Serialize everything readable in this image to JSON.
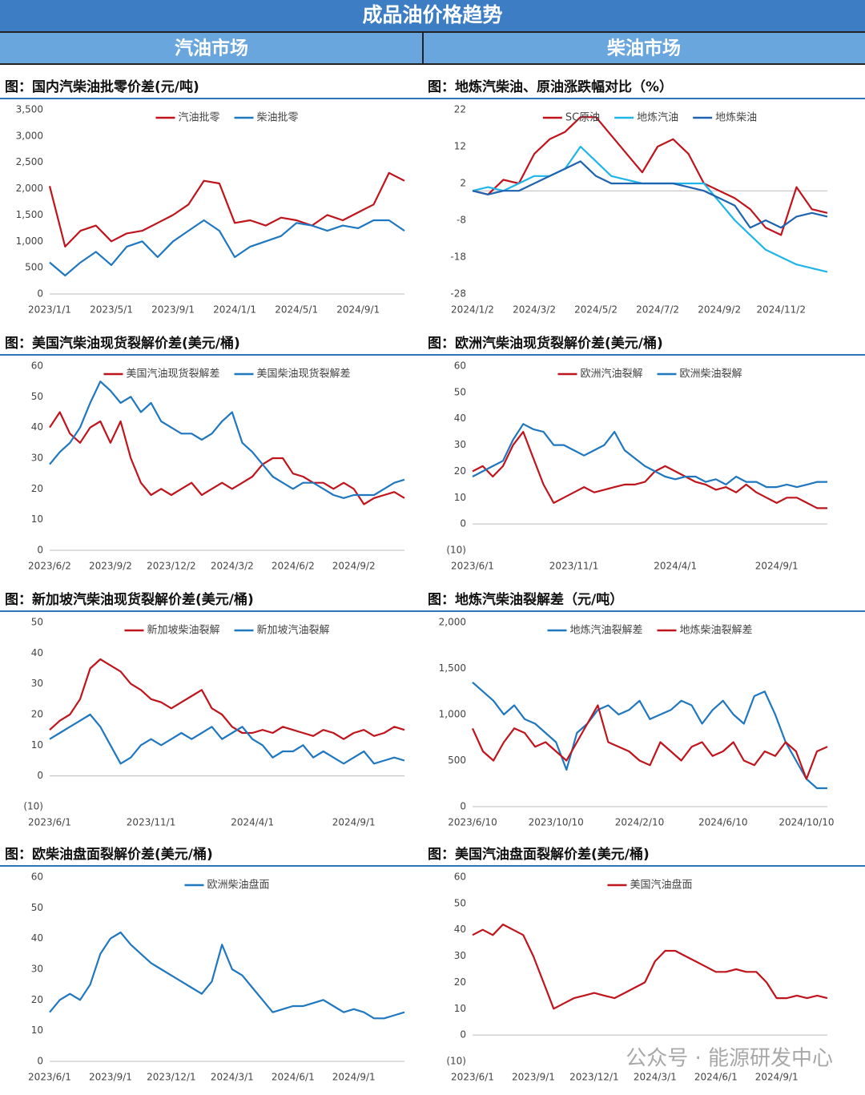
{
  "header": {
    "title": "成品油价格趋势",
    "sections": [
      "汽油市场",
      "柴油市场"
    ]
  },
  "watermark": "公众号 · 能源研发中心",
  "chart_data": [
    {
      "type": "line",
      "title": "图：国内汽柴油批零价差(元/吨)",
      "categories": [
        "2023/1/1",
        null,
        null,
        null,
        "2023/5/1",
        null,
        null,
        null,
        "2023/9/1",
        null,
        null,
        null,
        "2024/1/1",
        null,
        null,
        null,
        "2024/5/1",
        null,
        null,
        null,
        "2024/9/1",
        null,
        null,
        null
      ],
      "series": [
        {
          "name": "汽油批零",
          "color": "#c0141c",
          "values": [
            2050,
            900,
            1200,
            1300,
            1000,
            1150,
            1200,
            1350,
            1500,
            1700,
            2150,
            2100,
            1350,
            1400,
            1300,
            1450,
            1400,
            1300,
            1500,
            1400,
            1550,
            1700,
            2300,
            2150
          ]
        },
        {
          "name": "柴油批零",
          "color": "#1f77c0",
          "values": [
            600,
            350,
            600,
            800,
            550,
            900,
            1000,
            700,
            1000,
            1200,
            1400,
            1200,
            700,
            900,
            1000,
            1100,
            1350,
            1300,
            1200,
            1300,
            1250,
            1400,
            1400,
            1200
          ]
        }
      ],
      "ylim": [
        0,
        3500
      ],
      "yticks": [
        0,
        500,
        {
          "value": 1000,
          "label": "1,000"
        },
        {
          "value": 1500,
          "label": "1,500"
        },
        {
          "value": 2000,
          "label": "2,000"
        },
        {
          "value": 2500,
          "label": "2,500"
        },
        {
          "value": 3000,
          "label": "3,000"
        },
        {
          "value": 3500,
          "label": "3,500"
        }
      ],
      "grid": false
    },
    {
      "type": "line",
      "title": "图：地炼汽柴油、原油涨跌幅对比（%）",
      "categories": [
        "2024/1/2",
        null,
        null,
        null,
        "2024/3/2",
        null,
        null,
        null,
        "2024/5/2",
        null,
        null,
        null,
        "2024/7/2",
        null,
        null,
        null,
        "2024/9/2",
        null,
        null,
        null,
        "2024/11/2",
        null,
        null,
        null
      ],
      "series": [
        {
          "name": "SC原油",
          "color": "#c0141c",
          "values": [
            0,
            -1,
            3,
            2,
            10,
            14,
            16,
            20,
            20,
            15,
            10,
            5,
            12,
            14,
            10,
            2,
            0,
            -2,
            -5,
            -10,
            -12,
            1,
            -5,
            -6
          ]
        },
        {
          "name": "地炼汽油",
          "color": "#1fb5e8",
          "values": [
            0,
            1,
            0,
            2,
            4,
            4,
            6,
            12,
            8,
            4,
            3,
            2,
            2,
            2,
            2,
            2,
            -3,
            -8,
            -12,
            -16,
            -18,
            -20,
            -21,
            -22
          ]
        },
        {
          "name": "地炼柴油",
          "color": "#1f63b0",
          "values": [
            0,
            -1,
            0,
            0,
            2,
            4,
            6,
            8,
            4,
            2,
            2,
            2,
            2,
            2,
            1,
            0,
            -2,
            -4,
            -10,
            -8,
            -10,
            -7,
            -6,
            -7
          ]
        }
      ],
      "ylim": [
        -28,
        22
      ],
      "yticks": [
        -28,
        -18,
        -8,
        2,
        12,
        22
      ],
      "grid": false
    },
    {
      "type": "line",
      "title": "图：美国汽柴油现货裂解价差(美元/桶)",
      "categories": [
        "2023/6/2",
        null,
        null,
        null,
        null,
        null,
        "2023/9/2",
        null,
        null,
        null,
        null,
        null,
        "2023/12/2",
        null,
        null,
        null,
        null,
        null,
        "2024/3/2",
        null,
        null,
        null,
        null,
        null,
        "2024/6/2",
        null,
        null,
        null,
        null,
        null,
        "2024/9/2",
        null,
        null,
        null,
        null,
        null
      ],
      "series": [
        {
          "name": "美国汽油现货裂解差",
          "color": "#c0141c",
          "values": [
            40,
            45,
            38,
            35,
            40,
            42,
            35,
            42,
            30,
            22,
            18,
            20,
            18,
            20,
            22,
            18,
            20,
            22,
            20,
            22,
            24,
            28,
            30,
            30,
            25,
            24,
            22,
            22,
            20,
            22,
            20,
            15,
            17,
            18,
            19,
            17
          ]
        },
        {
          "name": "美国柴油现货裂解差",
          "color": "#1f77c0",
          "values": [
            28,
            32,
            35,
            40,
            48,
            55,
            52,
            48,
            50,
            45,
            48,
            42,
            40,
            38,
            38,
            36,
            38,
            42,
            45,
            35,
            32,
            28,
            24,
            22,
            20,
            22,
            22,
            20,
            18,
            17,
            18,
            18,
            18,
            20,
            22,
            23
          ]
        }
      ],
      "ylim": [
        0,
        60
      ],
      "yticks": [
        0,
        10,
        20,
        30,
        40,
        50,
        60
      ],
      "grid": false
    },
    {
      "type": "line",
      "title": "图：欧洲汽柴油现货裂解价差(美元/桶)",
      "categories": [
        "2023/6/1",
        null,
        null,
        null,
        null,
        null,
        null,
        null,
        null,
        null,
        "2023/11/1",
        null,
        null,
        null,
        null,
        null,
        null,
        null,
        null,
        null,
        "2024/4/1",
        null,
        null,
        null,
        null,
        null,
        null,
        null,
        null,
        null,
        "2024/9/1",
        null,
        null,
        null,
        null,
        null
      ],
      "series": [
        {
          "name": "欧洲汽油裂解",
          "color": "#c0141c",
          "values": [
            20,
            22,
            18,
            22,
            30,
            35,
            25,
            15,
            8,
            10,
            12,
            14,
            12,
            13,
            14,
            15,
            15,
            16,
            20,
            22,
            20,
            18,
            16,
            15,
            13,
            14,
            12,
            15,
            12,
            10,
            8,
            10,
            10,
            8,
            6,
            6
          ]
        },
        {
          "name": "欧洲柴油裂解",
          "color": "#1f77c0",
          "values": [
            18,
            20,
            22,
            24,
            32,
            38,
            36,
            35,
            30,
            30,
            28,
            26,
            28,
            30,
            35,
            28,
            25,
            22,
            20,
            18,
            17,
            18,
            18,
            16,
            17,
            15,
            18,
            16,
            16,
            14,
            14,
            15,
            14,
            15,
            16,
            16
          ]
        }
      ],
      "ylim": [
        -10,
        60
      ],
      "yticks": [
        {
          "value": -10,
          "label": "(10)"
        },
        0,
        10,
        20,
        30,
        40,
        50,
        60
      ],
      "grid": false
    },
    {
      "type": "line",
      "title": "图：新加坡汽柴油现货裂解价差(美元/桶)",
      "categories": [
        "2023/6/1",
        null,
        null,
        null,
        null,
        null,
        null,
        null,
        null,
        null,
        "2023/11/1",
        null,
        null,
        null,
        null,
        null,
        null,
        null,
        null,
        null,
        "2024/4/1",
        null,
        null,
        null,
        null,
        null,
        null,
        null,
        null,
        null,
        "2024/9/1",
        null,
        null,
        null,
        null,
        null
      ],
      "series": [
        {
          "name": "新加坡柴油裂解",
          "color": "#c0141c",
          "values": [
            15,
            18,
            20,
            25,
            35,
            38,
            36,
            34,
            30,
            28,
            25,
            24,
            22,
            24,
            26,
            28,
            22,
            20,
            16,
            14,
            14,
            15,
            14,
            16,
            15,
            14,
            13,
            15,
            14,
            12,
            14,
            15,
            13,
            14,
            16,
            15
          ]
        },
        {
          "name": "新加坡汽油裂解",
          "color": "#1f77c0",
          "values": [
            12,
            14,
            16,
            18,
            20,
            16,
            10,
            4,
            6,
            10,
            12,
            10,
            12,
            14,
            12,
            14,
            16,
            12,
            14,
            16,
            12,
            10,
            6,
            8,
            8,
            10,
            6,
            8,
            6,
            4,
            6,
            8,
            4,
            5,
            6,
            5
          ]
        }
      ],
      "ylim": [
        -10,
        50
      ],
      "yticks": [
        {
          "value": -10,
          "label": "(10)"
        },
        0,
        10,
        20,
        30,
        40,
        50
      ],
      "grid": false
    },
    {
      "type": "line",
      "title": "图：地炼汽柴油裂解差（元/吨）",
      "categories": [
        "2023/6/10",
        null,
        null,
        null,
        null,
        null,
        null,
        null,
        "2023/10/10",
        null,
        null,
        null,
        null,
        null,
        null,
        null,
        "2024/2/10",
        null,
        null,
        null,
        null,
        null,
        null,
        null,
        "2024/6/10",
        null,
        null,
        null,
        null,
        null,
        null,
        null,
        "2024/10/10",
        null,
        null
      ],
      "series": [
        {
          "name": "地炼汽油裂解差",
          "color": "#1f77c0",
          "values": [
            1350,
            1250,
            1150,
            1000,
            1100,
            950,
            900,
            800,
            700,
            400,
            800,
            900,
            1050,
            1100,
            1000,
            1050,
            1150,
            950,
            1000,
            1050,
            1150,
            1100,
            900,
            1050,
            1150,
            1000,
            900,
            1200,
            1250,
            1000,
            700,
            500,
            300,
            200,
            200
          ]
        },
        {
          "name": "地炼柴油裂解差",
          "color": "#c0141c",
          "values": [
            850,
            600,
            500,
            700,
            850,
            800,
            650,
            700,
            600,
            500,
            700,
            900,
            1100,
            700,
            650,
            600,
            500,
            450,
            700,
            600,
            500,
            650,
            700,
            550,
            600,
            700,
            500,
            450,
            600,
            550,
            700,
            600,
            300,
            600,
            650
          ]
        }
      ],
      "ylim": [
        0,
        2000
      ],
      "yticks": [
        0,
        500,
        {
          "value": 1000,
          "label": "1,000"
        },
        {
          "value": 1500,
          "label": "1,500"
        },
        {
          "value": 2000,
          "label": "2,000"
        }
      ],
      "grid": false
    },
    {
      "type": "line",
      "title": "图：欧柴油盘面裂解价差(美元/桶)",
      "categories": [
        "2023/6/1",
        null,
        null,
        null,
        null,
        null,
        "2023/9/1",
        null,
        null,
        null,
        null,
        null,
        "2023/12/1",
        null,
        null,
        null,
        null,
        null,
        "2024/3/1",
        null,
        null,
        null,
        null,
        null,
        "2024/6/1",
        null,
        null,
        null,
        null,
        null,
        "2024/9/1",
        null,
        null,
        null,
        null,
        null
      ],
      "series": [
        {
          "name": "欧洲柴油盘面",
          "color": "#1f77c0",
          "values": [
            16,
            20,
            22,
            20,
            25,
            35,
            40,
            42,
            38,
            35,
            32,
            30,
            28,
            26,
            24,
            22,
            26,
            38,
            30,
            28,
            24,
            20,
            16,
            17,
            18,
            18,
            19,
            20,
            18,
            16,
            17,
            16,
            14,
            14,
            15,
            16
          ]
        }
      ],
      "ylim": [
        0,
        60
      ],
      "yticks": [
        0,
        10,
        20,
        30,
        40,
        50,
        60
      ],
      "grid": false
    },
    {
      "type": "line",
      "title": "图：美国汽油盘面裂解价差(美元/桶)",
      "categories": [
        "2023/6/1",
        null,
        null,
        null,
        null,
        null,
        "2023/9/1",
        null,
        null,
        null,
        null,
        null,
        "2023/12/1",
        null,
        null,
        null,
        null,
        null,
        "2024/3/1",
        null,
        null,
        null,
        null,
        null,
        "2024/6/1",
        null,
        null,
        null,
        null,
        null,
        "2024/9/1",
        null,
        null,
        null,
        null,
        null
      ],
      "series": [
        {
          "name": "美国汽油盘面",
          "color": "#c0141c",
          "values": [
            38,
            40,
            38,
            42,
            40,
            38,
            30,
            20,
            10,
            12,
            14,
            15,
            16,
            15,
            14,
            16,
            18,
            20,
            28,
            32,
            32,
            30,
            28,
            26,
            24,
            24,
            25,
            24,
            24,
            20,
            14,
            14,
            15,
            14,
            15,
            14
          ]
        }
      ],
      "ylim": [
        -10,
        60
      ],
      "yticks": [
        {
          "value": -10,
          "label": "(10)"
        },
        0,
        10,
        20,
        30,
        40,
        50,
        60
      ],
      "grid": false
    }
  ]
}
